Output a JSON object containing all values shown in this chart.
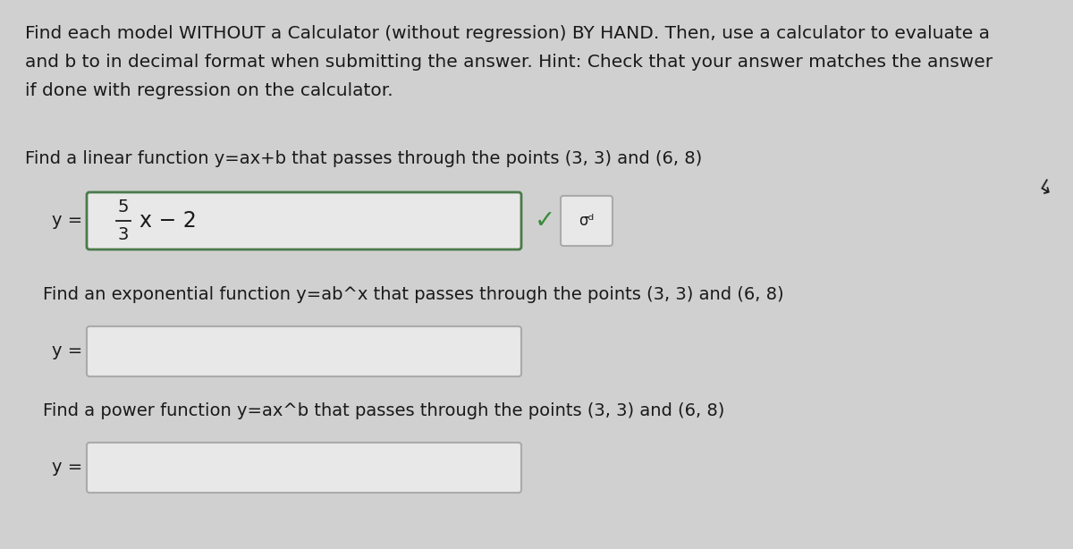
{
  "bg_color": "#c8c8c8",
  "bg_color2": "#d0d0d0",
  "text_color": "#1a1a1a",
  "header_text": [
    "Find each model WITHOUT a Calculator (without regression) BY HAND. Then, use a calculator to evaluate a",
    "and b to in decimal format when submitting the answer. Hint: Check that your answer matches the answer",
    "if done with regression on the calculator."
  ],
  "linear_label": "Find a linear function y=ax+b that passes through the points (3, 3) and (6, 8)",
  "exponential_label": "Find an exponential function y=ab^x that passes through the points (3, 3) and (6, 8)",
  "power_label": "Find a power function y=ax^b that passes through the points (3, 3) and (6, 8)",
  "box_color": "#e8e8e8",
  "box_edge_color_green": "#4a7a4a",
  "box_edge_color_gray": "#aaaaaa",
  "check_color": "#3a8a3a",
  "sigma_icon": "σ",
  "font_size_header": 14.5,
  "font_size_section": 14.0,
  "font_size_answer": 16,
  "figsize": [
    12.0,
    6.14
  ]
}
